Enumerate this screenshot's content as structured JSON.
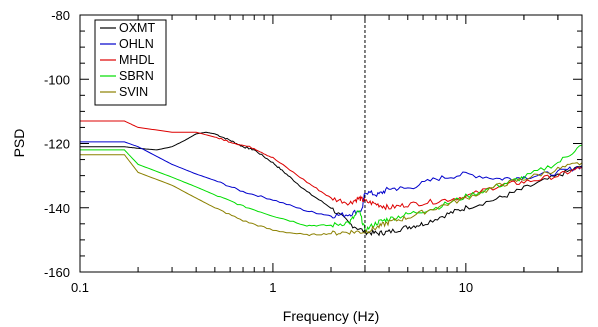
{
  "chart_data": {
    "type": "line",
    "xlabel": "Frequency (Hz)",
    "ylabel": "PSD",
    "x_scale": "log",
    "xlim": [
      0.1,
      40
    ],
    "ylim": [
      -160,
      -80
    ],
    "x_ticks": [
      {
        "value": 0.1,
        "label": "0.1"
      },
      {
        "value": 1,
        "label": "1"
      },
      {
        "value": 10,
        "label": "10"
      }
    ],
    "y_ticks": [
      {
        "value": -80,
        "label": "-80"
      },
      {
        "value": -100,
        "label": "-100"
      },
      {
        "value": -120,
        "label": "-120"
      },
      {
        "value": -140,
        "label": "-140"
      },
      {
        "value": -160,
        "label": "-160"
      }
    ],
    "vline": 3,
    "grid": false,
    "legend_position": "top-left",
    "series": [
      {
        "name": "OXMT",
        "color": "#000000",
        "x": [
          0.1,
          0.17,
          0.2,
          0.25,
          0.3,
          0.35,
          0.4,
          0.45,
          0.5,
          0.6,
          0.7,
          0.8,
          1.0,
          1.2,
          1.5,
          2.0,
          2.5,
          3.0,
          3.5,
          4,
          5,
          6,
          8,
          10,
          15,
          20,
          30,
          40
        ],
        "y": [
          -121,
          -121,
          -121.5,
          -122,
          -121,
          -119,
          -117,
          -116.5,
          -117,
          -119,
          -121,
          -122,
          -126,
          -130,
          -135,
          -140,
          -145,
          -147.5,
          -148,
          -147.5,
          -146,
          -145,
          -142,
          -140,
          -137,
          -134,
          -130,
          -127
        ]
      },
      {
        "name": "OHLN",
        "color": "#0000cc",
        "x": [
          0.1,
          0.17,
          0.2,
          0.25,
          0.3,
          0.4,
          0.5,
          0.7,
          1.0,
          1.5,
          2.0,
          2.5,
          2.9,
          3.0,
          3.5,
          4,
          5,
          7,
          10,
          15,
          20,
          30,
          40
        ],
        "y": [
          -119.5,
          -119.5,
          -121,
          -124,
          -126.5,
          -129.5,
          -131.5,
          -135,
          -137.5,
          -141,
          -142.5,
          -142,
          -140.5,
          -135,
          -136,
          -134,
          -134,
          -131,
          -129.5,
          -131,
          -130.5,
          -129,
          -127
        ]
      },
      {
        "name": "MHDL",
        "color": "#dd0000",
        "x": [
          0.1,
          0.17,
          0.2,
          0.3,
          0.4,
          0.5,
          0.6,
          0.8,
          1.0,
          1.5,
          2.0,
          2.5,
          2.8,
          3.0,
          3.5,
          4,
          5,
          7,
          10,
          15,
          20,
          30,
          40
        ],
        "y": [
          -113,
          -113,
          -115,
          -116.5,
          -116.5,
          -118,
          -119.5,
          -121.5,
          -124.5,
          -132,
          -137,
          -138.5,
          -137,
          -138,
          -139,
          -140,
          -139,
          -138,
          -136.5,
          -133,
          -132,
          -130,
          -127.5
        ]
      },
      {
        "name": "SBRN",
        "color": "#00dd00",
        "x": [
          0.1,
          0.17,
          0.2,
          0.3,
          0.4,
          0.5,
          0.7,
          1.0,
          1.5,
          2.0,
          2.5,
          2.8,
          3.0,
          3.5,
          4,
          5,
          7,
          10,
          15,
          20,
          30,
          40
        ],
        "y": [
          -122,
          -122,
          -126.5,
          -130.5,
          -133.5,
          -136,
          -139.5,
          -142.5,
          -145.5,
          -145.5,
          -144.5,
          -141,
          -147,
          -144.5,
          -143.5,
          -142,
          -140,
          -136.5,
          -133,
          -130.5,
          -126,
          -120.5
        ]
      },
      {
        "name": "SVIN",
        "color": "#8b8000",
        "x": [
          0.1,
          0.17,
          0.2,
          0.3,
          0.4,
          0.5,
          0.7,
          1.0,
          1.5,
          2.0,
          2.5,
          3.0,
          3.5,
          4,
          5,
          7,
          10,
          15,
          20,
          30,
          40
        ],
        "y": [
          -123.5,
          -123.5,
          -129,
          -133,
          -137,
          -140,
          -144,
          -147,
          -148.5,
          -148,
          -147.5,
          -147.5,
          -146,
          -144.5,
          -143,
          -140,
          -137,
          -133,
          -131,
          -128,
          -126
        ]
      }
    ]
  }
}
